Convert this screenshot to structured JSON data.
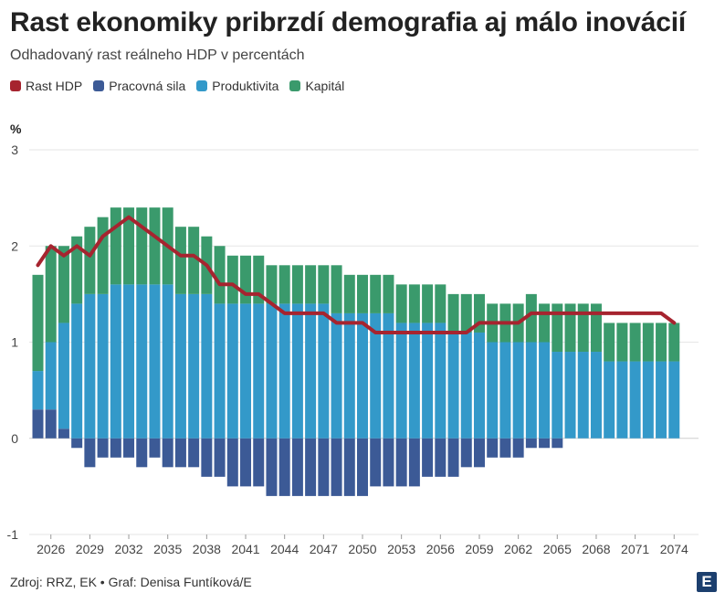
{
  "title": "Rast ekonomiky pribrzdí demografia aj málo inovácií",
  "subtitle": "Odhadovaný rast reálneho HDP v percentách",
  "unit_label": "%",
  "legend": [
    {
      "label": "Rast HDP",
      "color": "#a6242f"
    },
    {
      "label": "Pracovná sila",
      "color": "#3c5a96"
    },
    {
      "label": "Produktivita",
      "color": "#3399c9"
    },
    {
      "label": "Kapitál",
      "color": "#3a9a6c"
    }
  ],
  "footer": "Zdroj: RRZ, EK • Graf: Denisa Funtíková/E",
  "logo": "E",
  "chart_data": {
    "type": "bar",
    "stacked": true,
    "x": [
      2025,
      2026,
      2027,
      2028,
      2029,
      2030,
      2031,
      2032,
      2033,
      2034,
      2035,
      2036,
      2037,
      2038,
      2039,
      2040,
      2041,
      2042,
      2043,
      2044,
      2045,
      2046,
      2047,
      2048,
      2049,
      2050,
      2051,
      2052,
      2053,
      2054,
      2055,
      2056,
      2057,
      2058,
      2059,
      2060,
      2061,
      2062,
      2063,
      2064,
      2065,
      2066,
      2067,
      2068,
      2069,
      2070,
      2071,
      2072,
      2073,
      2074
    ],
    "x_tick_labels": [
      "2026",
      "2029",
      "2032",
      "2035",
      "2038",
      "2041",
      "2044",
      "2047",
      "2050",
      "2053",
      "2056",
      "2059",
      "2062",
      "2065",
      "2068",
      "2071",
      "2074"
    ],
    "ylim": [
      -1,
      3
    ],
    "y_ticks": [
      "3",
      "2",
      "1",
      "0",
      "-1"
    ],
    "grid": true,
    "series": [
      {
        "name": "Pracovná sila",
        "color": "#3c5a96",
        "values": [
          0.3,
          0.3,
          0.1,
          -0.1,
          -0.3,
          -0.2,
          -0.2,
          -0.2,
          -0.3,
          -0.2,
          -0.3,
          -0.3,
          -0.3,
          -0.4,
          -0.4,
          -0.5,
          -0.5,
          -0.5,
          -0.6,
          -0.6,
          -0.6,
          -0.6,
          -0.6,
          -0.6,
          -0.6,
          -0.6,
          -0.5,
          -0.5,
          -0.5,
          -0.5,
          -0.4,
          -0.4,
          -0.4,
          -0.3,
          -0.3,
          -0.2,
          -0.2,
          -0.2,
          -0.1,
          -0.1,
          -0.1,
          0,
          0,
          0,
          0,
          0,
          0,
          0,
          0,
          0
        ]
      },
      {
        "name": "Produktivita",
        "color": "#3399c9",
        "values": [
          0.4,
          0.7,
          1.1,
          1.4,
          1.5,
          1.5,
          1.6,
          1.6,
          1.6,
          1.6,
          1.6,
          1.5,
          1.5,
          1.5,
          1.4,
          1.4,
          1.4,
          1.4,
          1.4,
          1.4,
          1.4,
          1.4,
          1.4,
          1.3,
          1.3,
          1.3,
          1.3,
          1.3,
          1.2,
          1.2,
          1.2,
          1.2,
          1.1,
          1.1,
          1.1,
          1.0,
          1.0,
          1.0,
          1.0,
          1.0,
          0.9,
          0.9,
          0.9,
          0.9,
          0.8,
          0.8,
          0.8,
          0.8,
          0.8,
          0.8
        ]
      },
      {
        "name": "Kapitál",
        "color": "#3a9a6c",
        "values": [
          1.0,
          1.0,
          0.8,
          0.7,
          0.7,
          0.8,
          0.8,
          0.8,
          0.8,
          0.8,
          0.8,
          0.7,
          0.7,
          0.6,
          0.6,
          0.5,
          0.5,
          0.5,
          0.4,
          0.4,
          0.4,
          0.4,
          0.4,
          0.5,
          0.4,
          0.4,
          0.4,
          0.4,
          0.4,
          0.4,
          0.4,
          0.4,
          0.4,
          0.4,
          0.4,
          0.4,
          0.4,
          0.4,
          0.5,
          0.4,
          0.5,
          0.5,
          0.5,
          0.5,
          0.4,
          0.4,
          0.4,
          0.4,
          0.4,
          0.4
        ]
      },
      {
        "name": "Rast HDP",
        "type": "line",
        "color": "#a6242f",
        "values": [
          1.8,
          2.0,
          1.9,
          2.0,
          1.9,
          2.1,
          2.2,
          2.3,
          2.2,
          2.1,
          2.0,
          1.9,
          1.9,
          1.8,
          1.6,
          1.6,
          1.5,
          1.5,
          1.4,
          1.3,
          1.3,
          1.3,
          1.3,
          1.2,
          1.2,
          1.2,
          1.1,
          1.1,
          1.1,
          1.1,
          1.1,
          1.1,
          1.1,
          1.1,
          1.2,
          1.2,
          1.2,
          1.2,
          1.3,
          1.3,
          1.3,
          1.3,
          1.3,
          1.3,
          1.3,
          1.3,
          1.3,
          1.3,
          1.3,
          1.2
        ]
      }
    ]
  }
}
